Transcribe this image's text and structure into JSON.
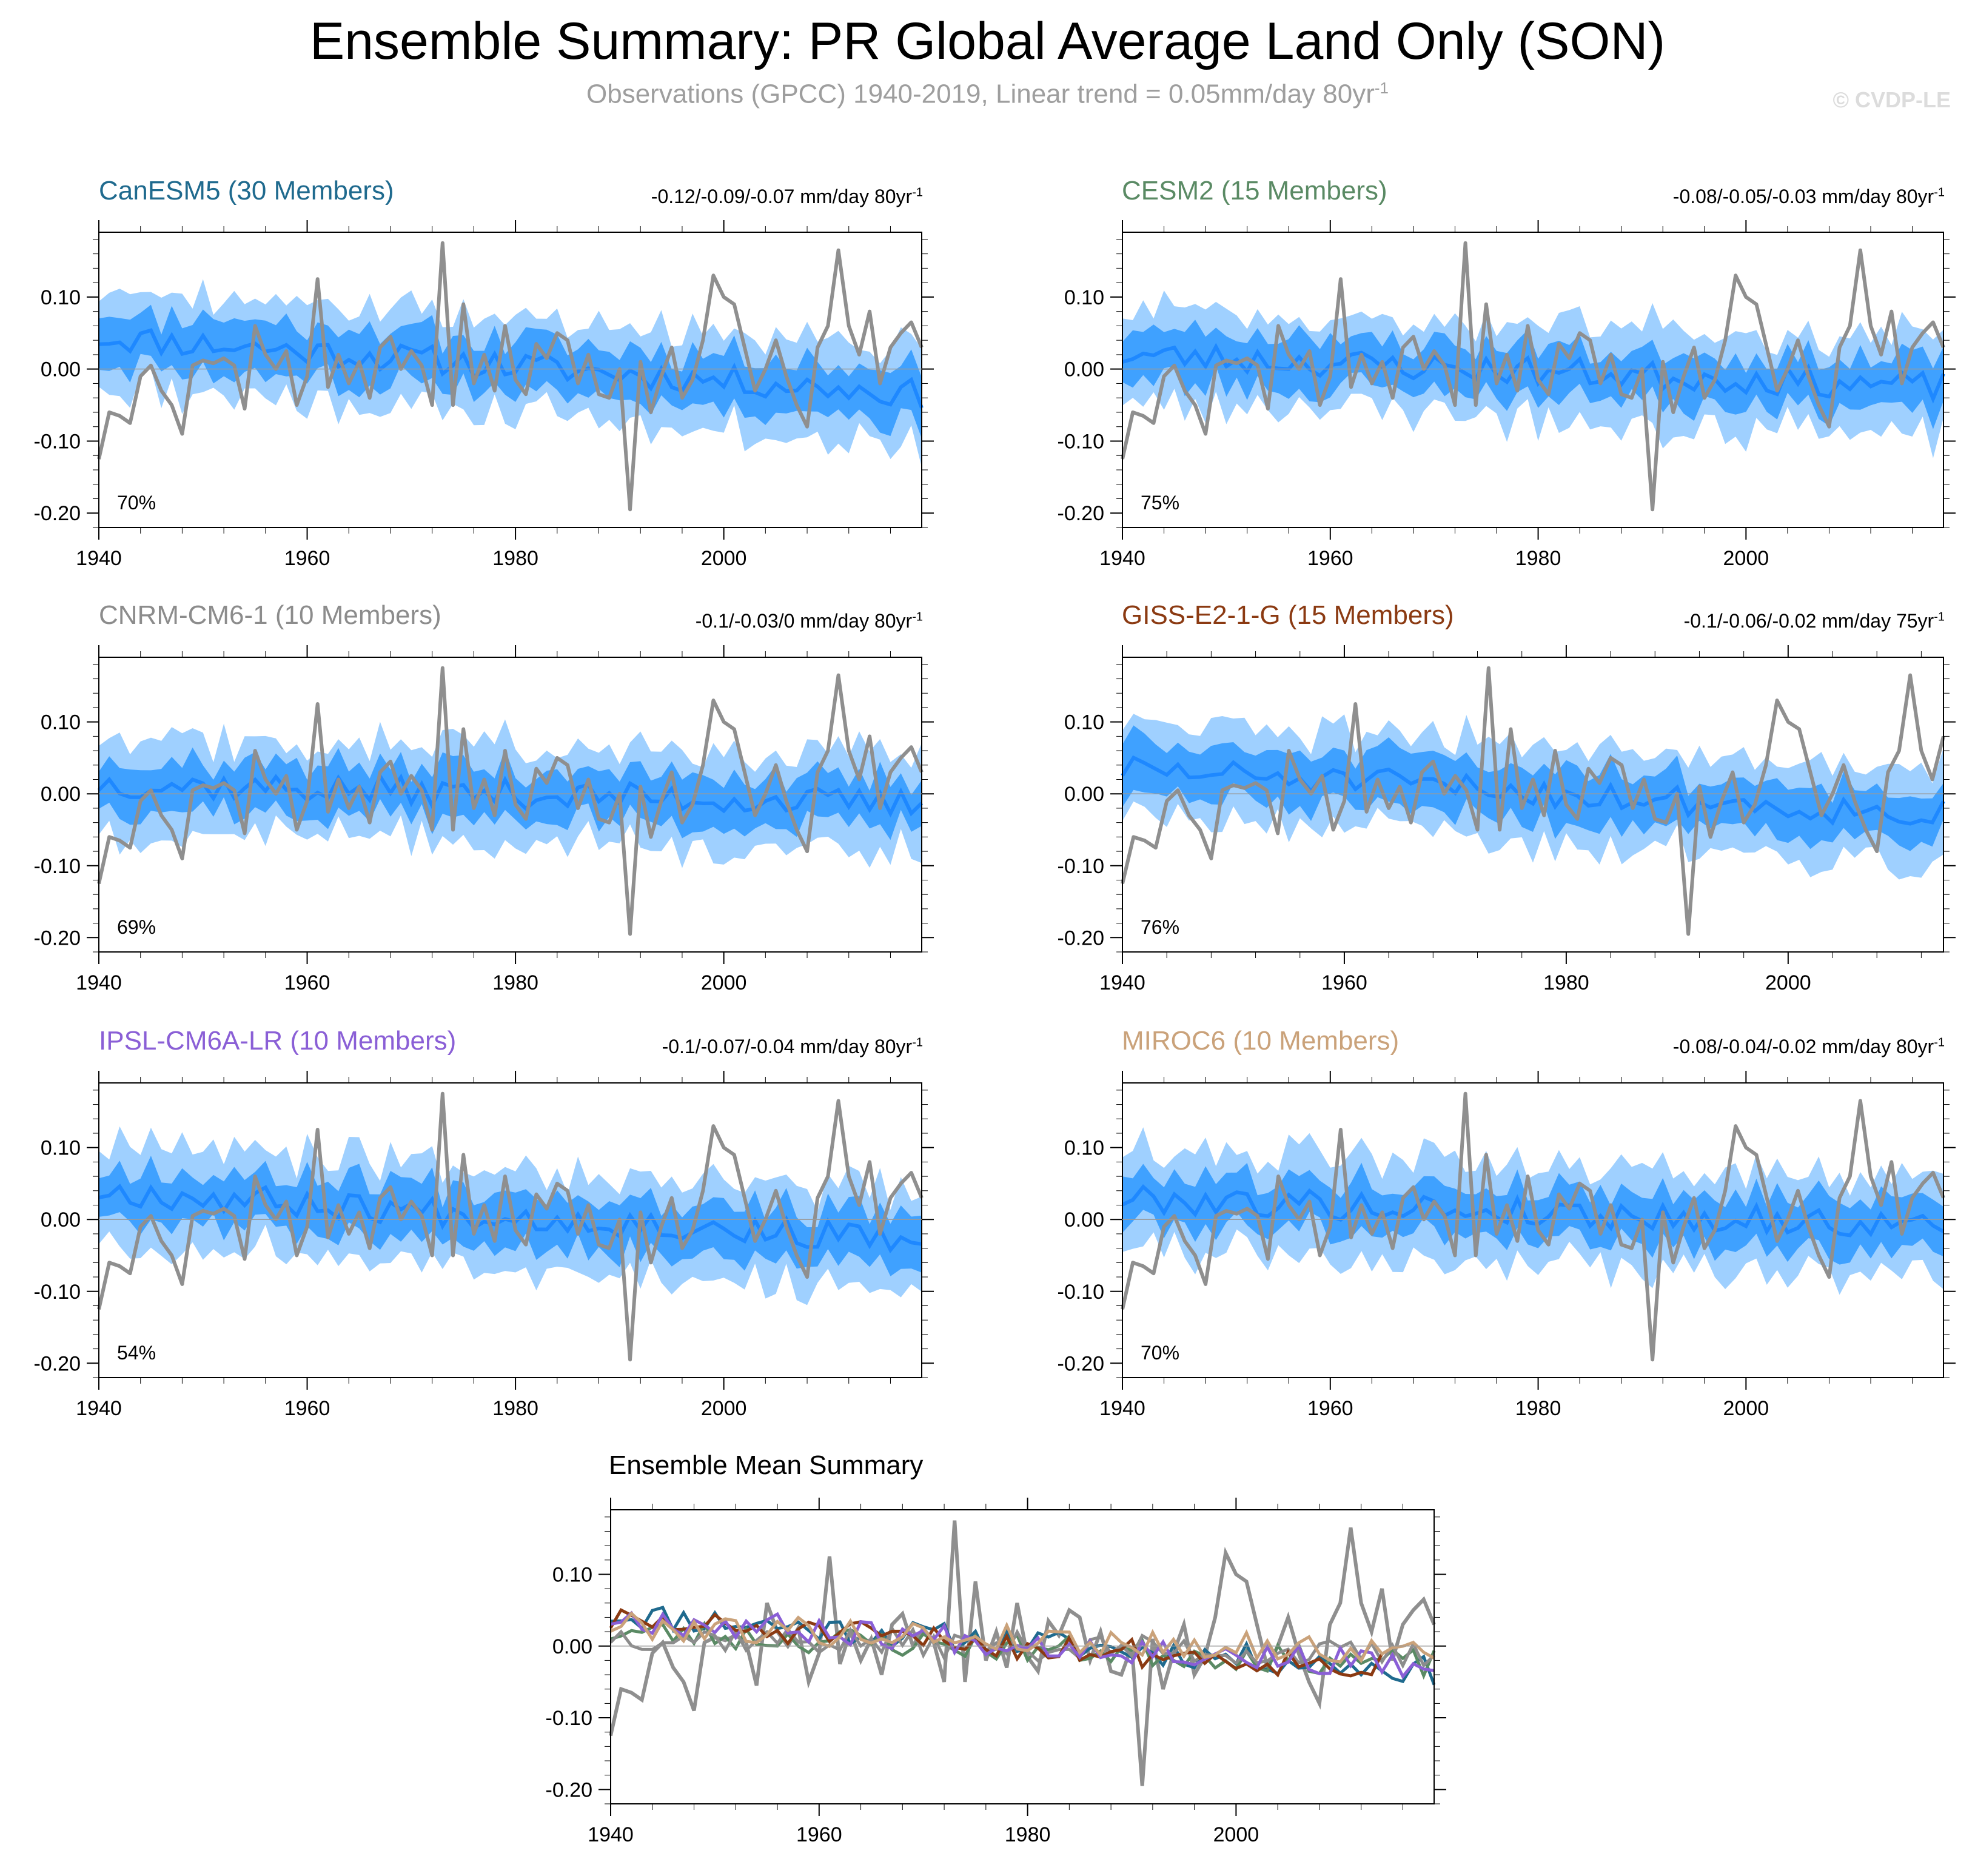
{
  "title": "Ensemble Summary: PR Global Average Land Only (SON)",
  "subtitle": {
    "text": "Observations (GPCC) 1940-2019, Linear trend = 0.05mm/day 80yr",
    "sup": "-1"
  },
  "watermark": "© CVDP-LE",
  "colors": {
    "outer_band": "#9fd0ff",
    "inner_band": "#3fa1ff",
    "ens_line": "#1e88ff",
    "obs": "#8f8f8f"
  },
  "chart_data": [
    {
      "type": "area",
      "title": "CanESM5 (30 Members)",
      "title_color": "#1f6a8e",
      "trend_label": "-0.12/-0.09/-0.07 mm/day 80yr",
      "trend_sup": "-1",
      "percent": "70%",
      "x": [
        1940,
        2019
      ],
      "ylim": [
        -0.22,
        0.19
      ],
      "yticks": [
        "0.10",
        "0.00",
        "-0.10",
        "-0.20"
      ],
      "xticks": [
        "1940",
        "1960",
        "1980",
        "2000"
      ],
      "ens_mean_start": 0.045,
      "ens_mean_end": -0.035,
      "seed": 11
    },
    {
      "type": "area",
      "title": "CESM2 (15 Members)",
      "title_color": "#5a8a64",
      "trend_label": "-0.08/-0.05/-0.03 mm/day 80yr",
      "trend_sup": "-1",
      "percent": "75%",
      "x": [
        1940,
        2019
      ],
      "ylim": [
        -0.22,
        0.19
      ],
      "yticks": [
        "0.10",
        "0.00",
        "-0.10",
        "-0.20"
      ],
      "xticks": [
        "1940",
        "1960",
        "1980",
        "2000"
      ],
      "ens_mean_start": 0.02,
      "ens_mean_end": -0.025,
      "seed": 23
    },
    {
      "type": "area",
      "title": "CNRM-CM6-1 (10 Members)",
      "title_color": "#8c8c8c",
      "trend_label": "-0.1/-0.03/0 mm/day 80yr",
      "trend_sup": "-1",
      "percent": "69%",
      "x": [
        1940,
        2019
      ],
      "ylim": [
        -0.22,
        0.19
      ],
      "yticks": [
        "0.10",
        "0.00",
        "-0.10",
        "-0.20"
      ],
      "xticks": [
        "1940",
        "1960",
        "1980",
        "2000"
      ],
      "ens_mean_start": 0.015,
      "ens_mean_end": -0.015,
      "seed": 37
    },
    {
      "type": "area",
      "title": "GISS-E2-1-G (15 Members)",
      "title_color": "#8b3a12",
      "trend_label": "-0.1/-0.06/-0.02 mm/day 75yr",
      "trend_sup": "-1",
      "percent": "76%",
      "x": [
        1940,
        2014
      ],
      "ylim": [
        -0.22,
        0.19
      ],
      "yticks": [
        "0.10",
        "0.00",
        "-0.10",
        "-0.20"
      ],
      "xticks": [
        "1940",
        "1960",
        "1980",
        "2000"
      ],
      "ens_mean_start": 0.035,
      "ens_mean_end": -0.03,
      "seed": 51
    },
    {
      "type": "area",
      "title": "IPSL-CM6A-LR (10 Members)",
      "title_color": "#8a5fd6",
      "trend_label": "-0.1/-0.07/-0.04 mm/day 80yr",
      "trend_sup": "-1",
      "percent": "54%",
      "x": [
        1940,
        2019
      ],
      "ylim": [
        -0.22,
        0.19
      ],
      "yticks": [
        "0.10",
        "0.00",
        "-0.10",
        "-0.20"
      ],
      "xticks": [
        "1940",
        "1960",
        "1980",
        "2000"
      ],
      "ens_mean_start": 0.04,
      "ens_mean_end": -0.03,
      "seed": 67
    },
    {
      "type": "area",
      "title": "MIROC6 (10 Members)",
      "title_color": "#caa27a",
      "trend_label": "-0.08/-0.04/-0.02 mm/day 80yr",
      "trend_sup": "-1",
      "percent": "70%",
      "x": [
        1940,
        2019
      ],
      "ylim": [
        -0.22,
        0.19
      ],
      "yticks": [
        "0.10",
        "0.00",
        "-0.10",
        "-0.20"
      ],
      "xticks": [
        "1940",
        "1960",
        "1980",
        "2000"
      ],
      "ens_mean_start": 0.03,
      "ens_mean_end": -0.01,
      "seed": 79
    },
    {
      "type": "line",
      "title": "Ensemble Mean Summary",
      "x": [
        1940,
        2019
      ],
      "ylim": [
        -0.22,
        0.19
      ],
      "yticks": [
        "0.10",
        "0.00",
        "-0.10",
        "-0.20"
      ],
      "xticks": [
        "1940",
        "1960",
        "1980",
        "2000"
      ],
      "series": [
        {
          "name": "Observations (GPCC)",
          "color": "#8f8f8f"
        },
        {
          "name": "CanESM5",
          "color": "#1f6a8e"
        },
        {
          "name": "CESM2",
          "color": "#5a8a64"
        },
        {
          "name": "CNRM-CM6-1",
          "color": "#8c8c8c"
        },
        {
          "name": "GISS-E2-1-G",
          "color": "#8b3a12"
        },
        {
          "name": "IPSL-CM6A-LR",
          "color": "#8a5fd6"
        },
        {
          "name": "MIROC6",
          "color": "#caa27a"
        }
      ]
    }
  ],
  "observations": {
    "name": "Observations (GPCC)",
    "years": [
      1940,
      2019
    ],
    "values": [
      -0.125,
      -0.06,
      -0.065,
      -0.075,
      -0.01,
      0.005,
      -0.03,
      -0.05,
      -0.09,
      0.005,
      0.012,
      0.008,
      0.015,
      0.005,
      -0.055,
      0.06,
      0.02,
      0.0,
      0.025,
      -0.05,
      -0.01,
      0.125,
      -0.025,
      0.02,
      -0.02,
      0.01,
      -0.04,
      0.03,
      0.045,
      0.0,
      0.025,
      0.005,
      -0.05,
      0.175,
      -0.05,
      0.09,
      -0.02,
      0.02,
      -0.03,
      0.06,
      -0.015,
      -0.035,
      0.035,
      0.015,
      0.05,
      0.04,
      -0.02,
      0.02,
      -0.035,
      -0.04,
      0.0,
      -0.195,
      0.01,
      -0.06,
      -0.01,
      0.03,
      -0.04,
      -0.015,
      0.04,
      0.13,
      0.1,
      0.09,
      0.03,
      -0.03,
      0.0,
      0.04,
      -0.01,
      -0.05,
      -0.08,
      0.03,
      0.06,
      0.165,
      0.06,
      0.02,
      0.08,
      -0.02,
      0.03,
      0.05,
      0.065,
      0.03
    ]
  }
}
